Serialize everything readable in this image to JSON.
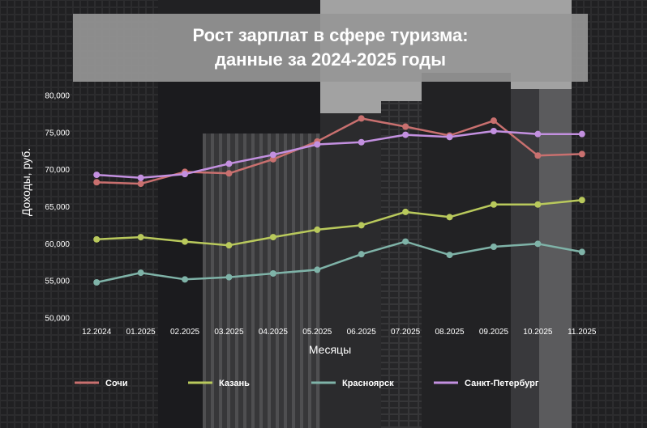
{
  "title": {
    "line1": "Рост зарплат в сфере туризма:",
    "line2": "данные за 2024-2025 годы"
  },
  "chart_data": {
    "type": "line",
    "xlabel": "Месяцы",
    "ylabel": "Доходы, руб.",
    "ylim": [
      50000,
      80000
    ],
    "yticks": [
      "50,000",
      "55,000",
      "60,000",
      "65,000",
      "70,000",
      "75,000",
      "80,000"
    ],
    "categories": [
      "12.2024",
      "01.2025",
      "02.2025",
      "03.2025",
      "04.2025",
      "05.2025",
      "06.2025",
      "07.2025",
      "08.2025",
      "09.2025",
      "10.2025",
      "11.2025"
    ],
    "grid": false,
    "legend_position": "bottom",
    "series": [
      {
        "name": "Сочи",
        "color": "#c9706f",
        "values": [
          68300,
          68100,
          69700,
          69500,
          71400,
          73800,
          76900,
          75800,
          74600,
          76600,
          71900,
          72100
        ]
      },
      {
        "name": "Казань",
        "color": "#b9c95c",
        "values": [
          60600,
          60900,
          60300,
          59800,
          60900,
          61900,
          62500,
          64300,
          63600,
          65300,
          65300,
          65900
        ]
      },
      {
        "name": "Красноярск",
        "color": "#7fb3a8",
        "values": [
          54800,
          56100,
          55200,
          55500,
          56000,
          56500,
          58600,
          60300,
          58500,
          59600,
          60000,
          58900
        ]
      },
      {
        "name": "Санкт-Петербург",
        "color": "#c390e0",
        "values": [
          69300,
          68900,
          69400,
          70800,
          72000,
          73400,
          73700,
          74700,
          74400,
          75200,
          74800,
          74800
        ]
      }
    ]
  }
}
